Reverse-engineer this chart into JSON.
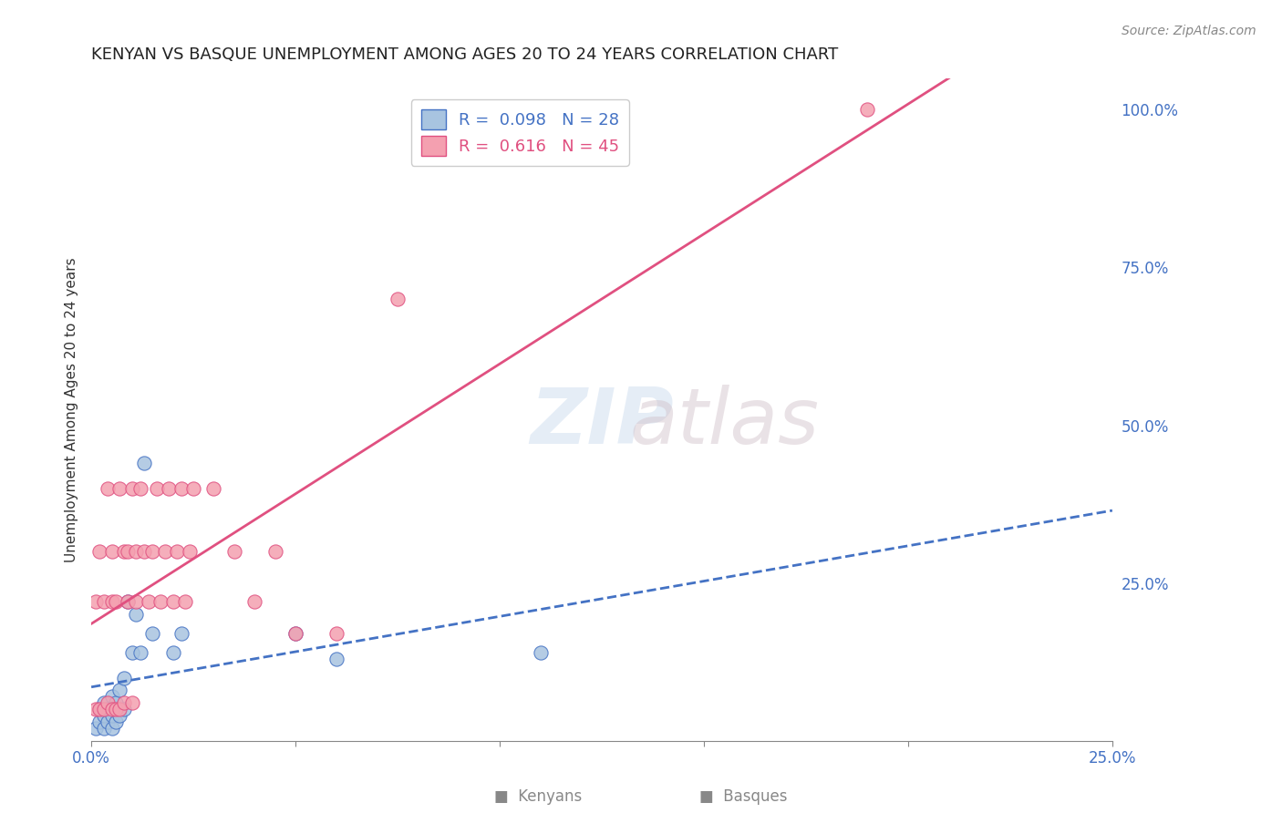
{
  "title": "KENYAN VS BASQUE UNEMPLOYMENT AMONG AGES 20 TO 24 YEARS CORRELATION CHART",
  "source": "Source: ZipAtlas.com",
  "xlabel": "",
  "ylabel": "Unemployment Among Ages 20 to 24 years",
  "xlim": [
    0.0,
    0.25
  ],
  "ylim": [
    0.0,
    1.05
  ],
  "xticks": [
    0.0,
    0.05,
    0.1,
    0.15,
    0.2,
    0.25
  ],
  "xtick_labels": [
    "0.0%",
    "",
    "",
    "",
    "",
    "25.0%"
  ],
  "yticks_right": [
    0.0,
    0.25,
    0.5,
    0.75,
    1.0
  ],
  "ytick_labels_right": [
    "",
    "25.0%",
    "50.0%",
    "75.0%",
    "100.0%"
  ],
  "kenyan_R": 0.098,
  "kenyan_N": 28,
  "basque_R": 0.616,
  "basque_N": 45,
  "kenyan_color": "#a8c4e0",
  "basque_color": "#f4a0b0",
  "kenyan_line_color": "#4472c4",
  "basque_line_color": "#e05080",
  "watermark": "ZIPatlas",
  "kenyan_x": [
    0.001,
    0.002,
    0.002,
    0.003,
    0.003,
    0.003,
    0.004,
    0.004,
    0.005,
    0.005,
    0.005,
    0.006,
    0.006,
    0.007,
    0.007,
    0.008,
    0.008,
    0.009,
    0.01,
    0.011,
    0.012,
    0.013,
    0.015,
    0.02,
    0.022,
    0.05,
    0.06,
    0.11
  ],
  "kenyan_y": [
    0.02,
    0.03,
    0.05,
    0.02,
    0.04,
    0.06,
    0.03,
    0.05,
    0.02,
    0.04,
    0.07,
    0.03,
    0.06,
    0.04,
    0.08,
    0.05,
    0.1,
    0.22,
    0.14,
    0.2,
    0.14,
    0.44,
    0.17,
    0.14,
    0.17,
    0.17,
    0.13,
    0.14
  ],
  "basque_x": [
    0.001,
    0.001,
    0.002,
    0.002,
    0.003,
    0.003,
    0.004,
    0.004,
    0.005,
    0.005,
    0.005,
    0.006,
    0.006,
    0.007,
    0.007,
    0.008,
    0.008,
    0.009,
    0.009,
    0.01,
    0.01,
    0.011,
    0.011,
    0.012,
    0.013,
    0.014,
    0.015,
    0.016,
    0.017,
    0.018,
    0.019,
    0.02,
    0.021,
    0.022,
    0.023,
    0.024,
    0.025,
    0.03,
    0.035,
    0.04,
    0.045,
    0.05,
    0.06,
    0.075,
    0.19
  ],
  "basque_y": [
    0.05,
    0.22,
    0.05,
    0.3,
    0.05,
    0.22,
    0.4,
    0.06,
    0.05,
    0.22,
    0.3,
    0.05,
    0.22,
    0.05,
    0.4,
    0.3,
    0.06,
    0.22,
    0.3,
    0.06,
    0.4,
    0.22,
    0.3,
    0.4,
    0.3,
    0.22,
    0.3,
    0.4,
    0.22,
    0.3,
    0.4,
    0.22,
    0.3,
    0.4,
    0.22,
    0.3,
    0.4,
    0.4,
    0.3,
    0.22,
    0.3,
    0.17,
    0.17,
    0.7,
    1.0
  ]
}
